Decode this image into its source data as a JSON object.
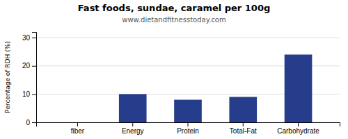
{
  "chart_data": {
    "type": "bar",
    "title": "Fast foods, sundae, caramel per 100g",
    "subtitle": "www.dietandfitnesstoday.com",
    "categories": [
      "fiber",
      "Energy",
      "Protein",
      "Total-Fat",
      "Carbohydrate"
    ],
    "values": [
      0,
      10,
      8,
      9,
      24
    ],
    "color": "#253d8a",
    "ylabel": "Percentage of RDH (%)",
    "ylim": [
      0,
      32
    ],
    "yticks": [
      0,
      10,
      20,
      30
    ],
    "grid": true
  }
}
